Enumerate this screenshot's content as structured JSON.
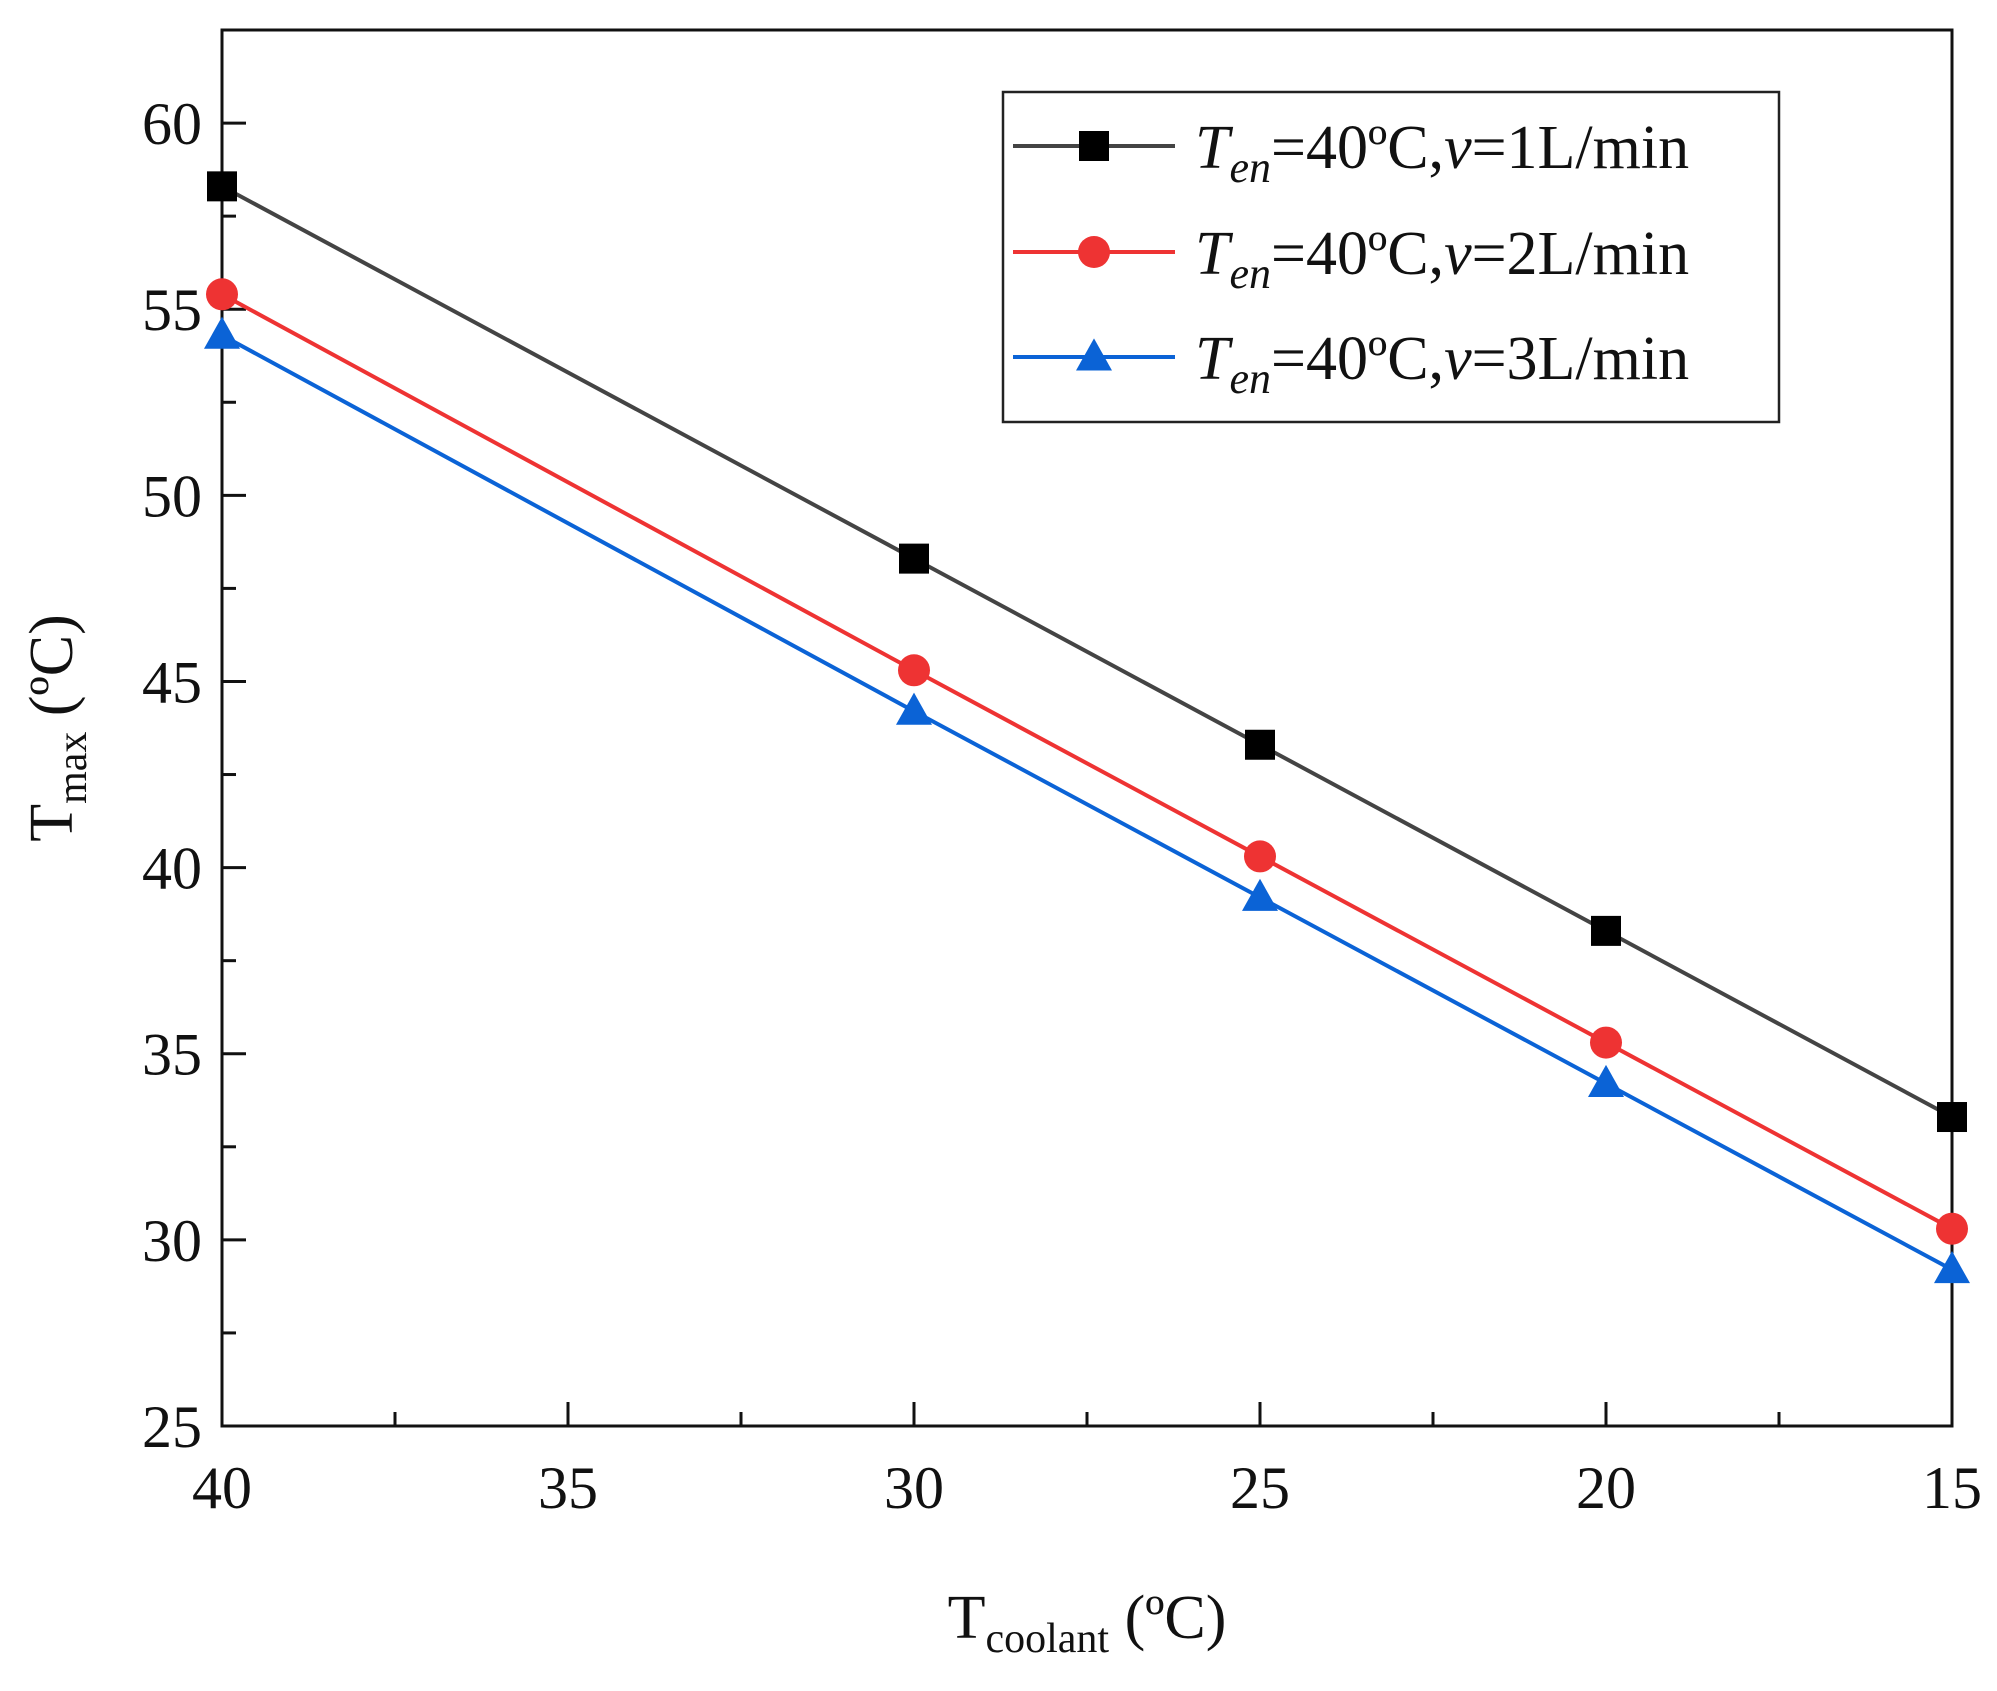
{
  "chart_data": {
    "type": "line",
    "xlabel": {
      "main": "T",
      "sub": "coolant",
      "unit": " (ºC)"
    },
    "ylabel": {
      "main": "T",
      "sub": "max",
      "unit": " (ºC)"
    },
    "xlim": [
      40,
      15
    ],
    "ylim": [
      25,
      62.5
    ],
    "x_ticks": [
      "40",
      "35",
      "30",
      "25",
      "20",
      "15"
    ],
    "y_ticks": [
      "25",
      "30",
      "35",
      "40",
      "45",
      "50",
      "55",
      "60"
    ],
    "x": [
      40,
      30,
      25,
      20,
      15
    ],
    "series": [
      {
        "name": "T_en=40ºC,v=1L/min",
        "label_main": "T",
        "label_sub": "en",
        "label_eq": "=40ºC,",
        "label_v": "v",
        "label_tail": "=1L/min",
        "marker": "square",
        "color": "#444444",
        "marker_color": "#000000",
        "values": [
          58.3,
          48.3,
          43.3,
          38.3,
          33.3
        ]
      },
      {
        "name": "T_en=40ºC,v=2L/min",
        "label_main": "T",
        "label_sub": "en",
        "label_eq": "=40ºC,",
        "label_v": "v",
        "label_tail": "=2L/min",
        "marker": "circle",
        "color": "#ee3333",
        "marker_color": "#ee3333",
        "values": [
          55.4,
          45.3,
          40.3,
          35.3,
          30.3
        ]
      },
      {
        "name": "T_en=40ºC,v=3L/min",
        "label_main": "T",
        "label_sub": "en",
        "label_eq": "=40ºC,",
        "label_v": "v",
        "label_tail": "=3L/min",
        "marker": "triangle",
        "color": "#0b63d6",
        "marker_color": "#0b63d6",
        "values": [
          54.3,
          44.2,
          39.2,
          34.2,
          29.2
        ]
      }
    ],
    "legend_position": "top-right",
    "grid": false
  }
}
